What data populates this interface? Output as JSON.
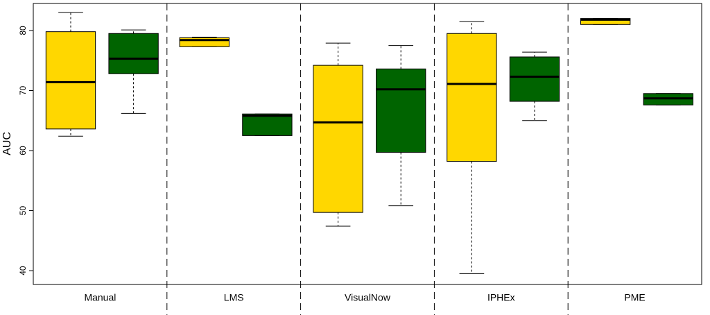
{
  "chart_data": {
    "type": "box",
    "y_label": "AUC",
    "categories": [
      "Manual",
      "LMS",
      "VisualNow",
      "IPHEx",
      "PME"
    ],
    "series": [
      {
        "color": "#ffd700",
        "values": [
          {
            "min": 62.4,
            "q1": 63.6,
            "median": 71.4,
            "q3": 79.8,
            "max": 83.0
          },
          {
            "min": 77.3,
            "q1": 77.3,
            "median": 78.4,
            "q3": 78.8,
            "max": 78.9
          },
          {
            "min": 47.4,
            "q1": 49.7,
            "median": 64.7,
            "q3": 74.2,
            "max": 77.9
          },
          {
            "min": 39.5,
            "q1": 58.2,
            "median": 71.1,
            "q3": 79.5,
            "max": 81.5
          },
          {
            "min": 81.0,
            "q1": 81.0,
            "median": 81.8,
            "q3": 82.0,
            "max": 82.0
          }
        ]
      },
      {
        "color": "#006400",
        "values": [
          {
            "min": 66.2,
            "q1": 72.8,
            "median": 75.3,
            "q3": 79.5,
            "max": 80.1
          },
          {
            "min": 62.5,
            "q1": 62.5,
            "median": 65.8,
            "q3": 66.1,
            "max": 66.1
          },
          {
            "min": 50.8,
            "q1": 59.7,
            "median": 70.2,
            "q3": 73.6,
            "max": 77.5
          },
          {
            "min": 65.0,
            "q1": 68.2,
            "median": 72.3,
            "q3": 75.6,
            "max": 76.4
          },
          {
            "min": 67.6,
            "q1": 67.6,
            "median": 68.7,
            "q3": 69.5,
            "max": 69.5
          }
        ]
      }
    ],
    "ylim": [
      37.7,
      84.5
    ],
    "yticks": [
      40,
      50,
      60,
      70,
      80
    ]
  }
}
